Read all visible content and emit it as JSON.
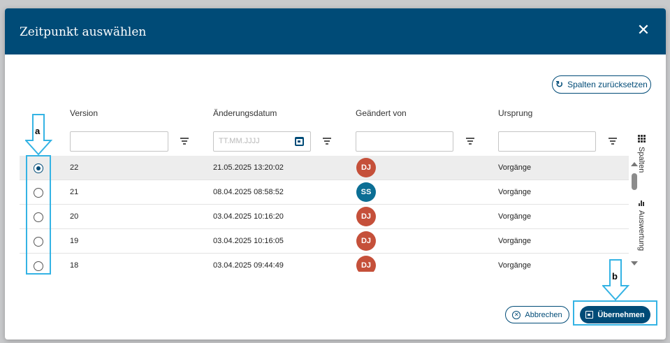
{
  "dialog": {
    "title": "Zeitpunkt auswählen",
    "close_icon": "close-icon"
  },
  "toolbar": {
    "reset_label": "Spalten zurücksetzen",
    "reset_icon": "refresh-icon"
  },
  "table": {
    "columns": [
      {
        "label": "Version",
        "filter_placeholder": ""
      },
      {
        "label": "Änderungsdatum",
        "filter_placeholder": "TT.MM.JJJJ"
      },
      {
        "label": "Geändert von",
        "filter_placeholder": ""
      },
      {
        "label": "Ursprung",
        "filter_placeholder": ""
      }
    ],
    "rows": [
      {
        "version": "22",
        "date": "21.05.2025 13:20:02",
        "user": "DJ",
        "user_color": "#c5503a",
        "origin": "Vorgänge",
        "selected": true
      },
      {
        "version": "21",
        "date": "08.04.2025 08:58:52",
        "user": "SS",
        "user_color": "#0b6e94",
        "origin": "Vorgänge",
        "selected": false
      },
      {
        "version": "20",
        "date": "03.04.2025 10:16:20",
        "user": "DJ",
        "user_color": "#c5503a",
        "origin": "Vorgänge",
        "selected": false
      },
      {
        "version": "19",
        "date": "03.04.2025 10:16:05",
        "user": "DJ",
        "user_color": "#c5503a",
        "origin": "Vorgänge",
        "selected": false
      },
      {
        "version": "18",
        "date": "03.04.2025 09:44:49",
        "user": "DJ",
        "user_color": "#c5503a",
        "origin": "Vorgänge",
        "selected": false
      }
    ]
  },
  "side_panel": {
    "columns_tab": "Spalten",
    "analysis_tab": "Auswertung"
  },
  "footer": {
    "cancel_label": "Abbrechen",
    "apply_label": "Übernehmen"
  },
  "annotations": {
    "a": "a",
    "b": "b"
  },
  "colors": {
    "header": "#004b77",
    "highlight": "#34b3e4"
  }
}
